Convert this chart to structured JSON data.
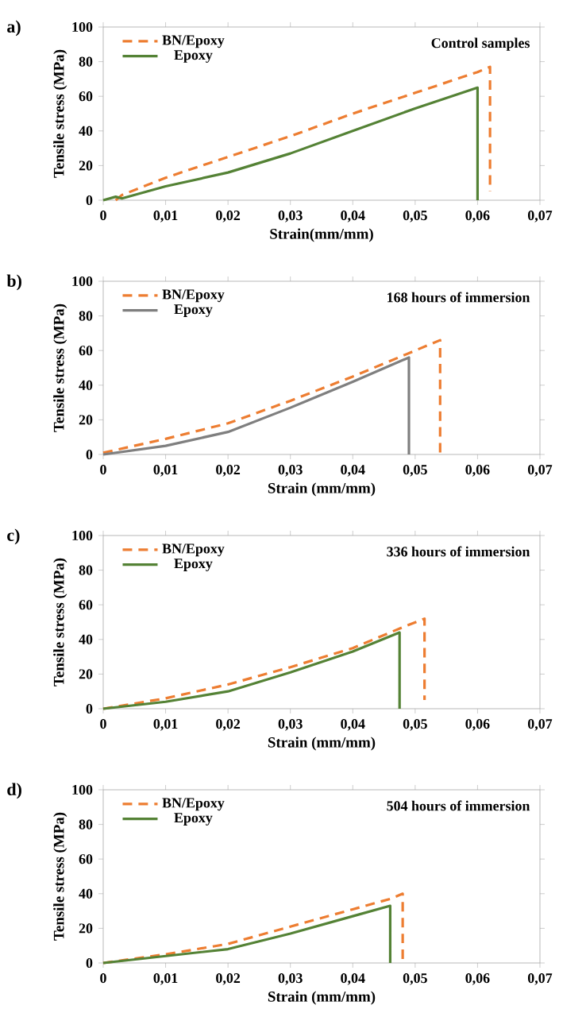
{
  "chart_data": [
    {
      "type": "line",
      "annotations": [
        "a)",
        "Control samples"
      ],
      "xlabel": "Strain(mm/mm)",
      "ylabel": "Tensile stress (MPa)",
      "xlim": [
        0,
        0.07
      ],
      "ylim": [
        0,
        100
      ],
      "xticks": [
        0,
        {
          "value": 0.01,
          "label": "0,01"
        },
        {
          "value": 0.02,
          "label": "0,02"
        },
        {
          "value": 0.03,
          "label": "0,03"
        },
        {
          "value": 0.04,
          "label": "0,04"
        },
        {
          "value": 0.05,
          "label": "0,05"
        },
        {
          "value": 0.06,
          "label": "0,06"
        },
        {
          "value": 0.07,
          "label": "0,07"
        }
      ],
      "yticks": [
        0,
        20,
        40,
        60,
        80,
        100
      ],
      "legend": "top left",
      "grid": false,
      "series": [
        {
          "name": "BN/Epoxy",
          "color": "#ed7d31",
          "line_style": "dashed",
          "x": [
            0.002,
            0.003,
            0.01,
            0.02,
            0.03,
            0.04,
            0.05,
            0.06,
            0.062,
            0.062
          ],
          "values": [
            0,
            3,
            13,
            25,
            37,
            50,
            62,
            74,
            77,
            5
          ]
        },
        {
          "name": "Epoxy",
          "color": "#548235",
          "line_style": "solid",
          "x": [
            0,
            0.002,
            0.003,
            0.01,
            0.02,
            0.03,
            0.04,
            0.05,
            0.06,
            0.06
          ],
          "values": [
            0,
            2,
            1,
            8,
            16,
            27,
            40,
            53,
            65,
            0
          ]
        }
      ]
    },
    {
      "type": "line",
      "annotations": [
        "b)",
        "168 hours of immersion"
      ],
      "xlabel": "Strain (mm/mm)",
      "ylabel": "Tensile stress (MPa)",
      "xlim": [
        0,
        0.07
      ],
      "ylim": [
        0,
        100
      ],
      "xticks": [
        0,
        {
          "value": 0.01,
          "label": "0,01"
        },
        {
          "value": 0.02,
          "label": "0,02"
        },
        {
          "value": 0.03,
          "label": "0,03"
        },
        {
          "value": 0.04,
          "label": "0,04"
        },
        {
          "value": 0.05,
          "label": "0,05"
        },
        {
          "value": 0.06,
          "label": "0,06"
        },
        {
          "value": 0.07,
          "label": "0,07"
        }
      ],
      "yticks": [
        0,
        20,
        40,
        60,
        80,
        100
      ],
      "legend": "top left",
      "grid": false,
      "series": [
        {
          "name": "BN/Epoxy",
          "color": "#ed7d31",
          "line_style": "dashed",
          "x": [
            0,
            0.01,
            0.02,
            0.03,
            0.04,
            0.05,
            0.054,
            0.054
          ],
          "values": [
            1,
            9,
            18,
            31,
            45,
            60,
            66,
            0
          ]
        },
        {
          "name": "Epoxy",
          "color": "#7f7f7f",
          "line_style": "solid",
          "x": [
            0,
            0.01,
            0.02,
            0.03,
            0.04,
            0.049,
            0.049
          ],
          "values": [
            0,
            5,
            13,
            27,
            42,
            56,
            0
          ]
        }
      ]
    },
    {
      "type": "line",
      "annotations": [
        "c)",
        "336 hours of immersion"
      ],
      "xlabel": "Strain (mm/mm)",
      "ylabel": "Tensile stress (MPa)",
      "xlim": [
        0,
        0.07
      ],
      "ylim": [
        0,
        100
      ],
      "xticks": [
        0,
        {
          "value": 0.01,
          "label": "0,01"
        },
        {
          "value": 0.02,
          "label": "0,02"
        },
        {
          "value": 0.03,
          "label": "0,03"
        },
        {
          "value": 0.04,
          "label": "0,04"
        },
        {
          "value": 0.05,
          "label": "0,05"
        },
        {
          "value": 0.06,
          "label": "0,06"
        },
        {
          "value": 0.07,
          "label": "0,07"
        }
      ],
      "yticks": [
        0,
        20,
        40,
        60,
        80,
        100
      ],
      "legend": "top left",
      "grid": false,
      "series": [
        {
          "name": "BN/Epoxy",
          "color": "#ed7d31",
          "line_style": "dashed",
          "x": [
            0,
            0.01,
            0.02,
            0.03,
            0.04,
            0.048,
            0.0515,
            0.0515
          ],
          "values": [
            0,
            6,
            14,
            24,
            35,
            47,
            52,
            5
          ]
        },
        {
          "name": "Epoxy",
          "color": "#548235",
          "line_style": "solid",
          "x": [
            0,
            0.01,
            0.02,
            0.03,
            0.04,
            0.0475,
            0.0475
          ],
          "values": [
            0,
            4,
            10,
            21,
            33,
            44,
            0
          ]
        }
      ]
    },
    {
      "type": "line",
      "annotations": [
        "d)",
        "504 hours of immersion"
      ],
      "xlabel": "Strain (mm/mm)",
      "ylabel": "Tensile stress (MPa)",
      "xlim": [
        0,
        0.07
      ],
      "ylim": [
        0,
        100
      ],
      "xticks": [
        0,
        {
          "value": 0.01,
          "label": "0,01"
        },
        {
          "value": 0.02,
          "label": "0,02"
        },
        {
          "value": 0.03,
          "label": "0,03"
        },
        {
          "value": 0.04,
          "label": "0,04"
        },
        {
          "value": 0.05,
          "label": "0,05"
        },
        {
          "value": 0.06,
          "label": "0,06"
        },
        {
          "value": 0.07,
          "label": "0,07"
        }
      ],
      "yticks": [
        0,
        20,
        40,
        60,
        80,
        100
      ],
      "legend": "top left",
      "grid": false,
      "series": [
        {
          "name": "BN/Epoxy",
          "color": "#ed7d31",
          "line_style": "dashed",
          "x": [
            0,
            0.01,
            0.02,
            0.03,
            0.04,
            0.046,
            0.048,
            0.048
          ],
          "values": [
            0,
            5,
            11,
            21,
            31,
            37,
            40,
            0
          ]
        },
        {
          "name": "Epoxy",
          "color": "#548235",
          "line_style": "solid",
          "x": [
            0,
            0.01,
            0.02,
            0.03,
            0.04,
            0.046,
            0.046
          ],
          "values": [
            0,
            4,
            8,
            17,
            27,
            33,
            0
          ]
        }
      ]
    }
  ]
}
